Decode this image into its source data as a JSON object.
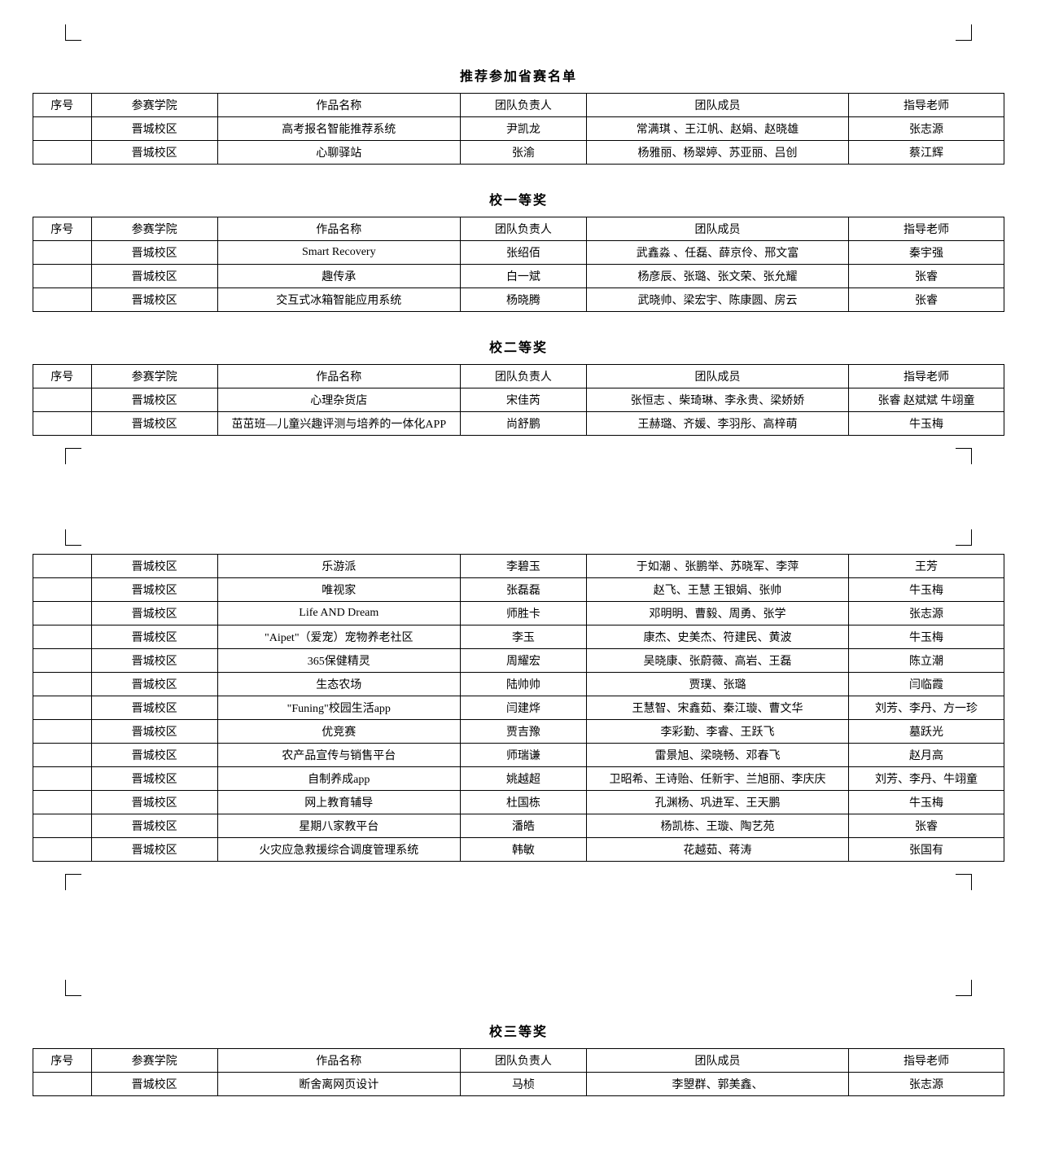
{
  "titles": {
    "recommend": "推荐参加省赛名单",
    "award1": "校一等奖",
    "award2": "校二等奖",
    "award3": "校三等奖"
  },
  "headers": {
    "seq": "序号",
    "college": "参赛学院",
    "work": "作品名称",
    "leader": "团队负责人",
    "members": "团队成员",
    "teacher": "指导老师"
  },
  "tables": {
    "recommend": [
      {
        "college": "晋城校区",
        "work": "高考报名智能推荐系统",
        "leader": "尹凯龙",
        "members": "常满琪 、王江帆、赵娟、赵晓雄",
        "teacher": "张志源"
      },
      {
        "college": "晋城校区",
        "work": "心聊驿站",
        "leader": "张渝",
        "members": "杨雅丽、杨翠婷、苏亚丽、吕创",
        "teacher": "蔡江辉"
      }
    ],
    "award1": [
      {
        "college": "晋城校区",
        "work": "Smart Recovery",
        "leader": "张绍佰",
        "members": "武鑫淼 、任磊、薛京伶、邢文富",
        "teacher": "秦宇强"
      },
      {
        "college": "晋城校区",
        "work": "趣传承",
        "leader": "白一斌",
        "members": "杨彦辰、张璐、张文荣、张允耀",
        "teacher": "张睿"
      },
      {
        "college": "晋城校区",
        "work": "交互式冰箱智能应用系统",
        "leader": "杨晓腾",
        "members": "武晓帅、梁宏宇、陈康圆、房云",
        "teacher": "张睿"
      }
    ],
    "award2a": [
      {
        "college": "晋城校区",
        "work": "心理杂货店",
        "leader": "宋佳芮",
        "members": "张恒志 、柴琦琳、李永贵、梁娇娇",
        "teacher": "张睿 赵斌斌 牛翊童"
      },
      {
        "college": "晋城校区",
        "work": "茁茁班—儿童兴趣评测与培养的一体化APP",
        "leader": "尚舒鹏",
        "members": "王赫璐、齐媛、李羽彤、高梓萌",
        "teacher": "牛玉梅"
      }
    ],
    "award2b": [
      {
        "college": "晋城校区",
        "work": "乐游派",
        "leader": "李碧玉",
        "members": "于如潮 、张鹏举、苏晓军、李萍",
        "teacher": "王芳"
      },
      {
        "college": "晋城校区",
        "work": "唯视家",
        "leader": "张磊磊",
        "members": "赵飞、王慧 王银娟、张帅",
        "teacher": "牛玉梅"
      },
      {
        "college": "晋城校区",
        "work": "Life AND Dream",
        "leader": "师胜卡",
        "members": "邓明明、曹毅、周勇、张学",
        "teacher": "张志源"
      },
      {
        "college": "晋城校区",
        "work": "\"Aipet\"（爱宠）宠物养老社区",
        "leader": "李玉",
        "members": "康杰、史美杰、符建民、黄波",
        "teacher": "牛玉梅"
      },
      {
        "college": "晋城校区",
        "work": "365保健精灵",
        "leader": "周耀宏",
        "members": "吴晓康、张蔚薇、高岩、王磊",
        "teacher": "陈立潮"
      },
      {
        "college": "晋城校区",
        "work": "生态农场",
        "leader": "陆帅帅",
        "members": "贾璞、张璐",
        "teacher": "闫临霞"
      },
      {
        "college": "晋城校区",
        "work": "\"Funing\"校园生活app",
        "leader": "闫建烨",
        "members": "王慧智、宋鑫茹、秦江璇、曹文华",
        "teacher": "刘芳、李丹、方一珍"
      },
      {
        "college": "晋城校区",
        "work": "优竞赛",
        "leader": "贾吉豫",
        "members": "李彩勤、李睿、王跃飞",
        "teacher": "墓跃光"
      },
      {
        "college": "晋城校区",
        "work": "农产品宣传与销售平台",
        "leader": "师瑞谦",
        "members": "雷景旭、梁晓畅、邓春飞",
        "teacher": "赵月高"
      },
      {
        "college": "晋城校区",
        "work": "自制养成app",
        "leader": "姚越超",
        "members": "卫昭希、王诗贻、任新宇、兰旭丽、李庆庆",
        "teacher": "刘芳、李丹、牛翊童"
      },
      {
        "college": "晋城校区",
        "work": "网上教育辅导",
        "leader": "杜国栋",
        "members": "孔渊杨、巩进军、王天鹏",
        "teacher": "牛玉梅"
      },
      {
        "college": "晋城校区",
        "work": "星期八家教平台",
        "leader": "潘皓",
        "members": "杨凯栋、王璇、陶艺苑",
        "teacher": "张睿"
      },
      {
        "college": "晋城校区",
        "work": "火灾应急救援综合调度管理系统",
        "leader": "韩敏",
        "members": "花越茹、蒋涛",
        "teacher": "张国有"
      }
    ],
    "award3": [
      {
        "college": "晋城校区",
        "work": "断舍离网页设计",
        "leader": "马桢",
        "members": "李曌群、郭美鑫、",
        "teacher": "张志源"
      }
    ]
  }
}
